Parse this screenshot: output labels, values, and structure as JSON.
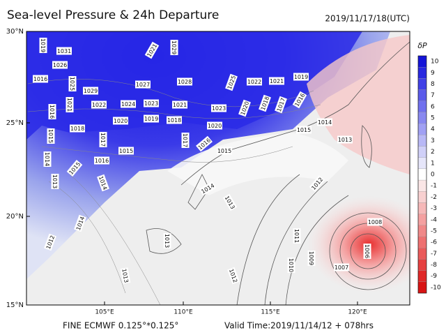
{
  "header": {
    "title": "Sea-level Pressure & 24h Departure",
    "time": "2019/11/17/18(UTC)"
  },
  "map": {
    "lat_labels": [
      "30°N",
      "25°N",
      "20°N",
      "15°N"
    ],
    "lon_labels": [
      "105°E",
      "110°E",
      "115°E",
      "120°E"
    ],
    "isobar_labels": [
      "1019",
      "1031",
      "1026",
      "1016",
      "1025",
      "1021",
      "1029",
      "1022",
      "1024",
      "1023",
      "1021",
      "1027",
      "1028",
      "1021",
      "1029",
      "1025",
      "1022",
      "1021",
      "1019",
      "1023",
      "1020",
      "1018",
      "1017",
      "1016",
      "1020",
      "1019",
      "1018",
      "1018",
      "1017",
      "1017",
      "1016",
      "1020",
      "1016",
      "1015",
      "1015",
      "1015",
      "1016",
      "1014",
      "1013",
      "1015",
      "1014",
      "1014",
      "1014",
      "1013",
      "1012",
      "1012",
      "1013",
      "1015",
      "1014",
      "1013",
      "1011",
      "1010",
      "1009",
      "1008",
      "1007",
      "1006",
      "1012",
      "1013"
    ]
  },
  "colorbar": {
    "title": "δP",
    "labels": [
      "10",
      "9",
      "8",
      "7",
      "6",
      "5",
      "4",
      "3",
      "2",
      "1",
      "0",
      "-1",
      "-2",
      "-3",
      "-4",
      "-5",
      "-6",
      "-7",
      "-8",
      "-9",
      "-10"
    ]
  },
  "footer": {
    "model": "FINE ECMWF 0.125°*0.125°",
    "valid": "Valid Time:2019/11/14/12 + 078hrs"
  }
}
